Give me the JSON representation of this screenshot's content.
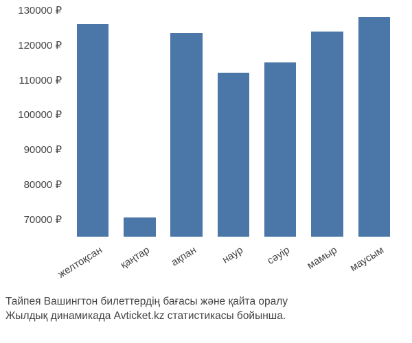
{
  "chart": {
    "type": "bar",
    "y_min": 65000,
    "y_max": 130000,
    "y_ticks": [
      70000,
      80000,
      90000,
      100000,
      110000,
      120000,
      130000
    ],
    "y_tick_suffix": " ₽",
    "categories": [
      "желтоқсан",
      "қаңтар",
      "ақпан",
      "наур",
      "сәуір",
      "мамыр",
      "маусым"
    ],
    "values": [
      126000,
      70500,
      123500,
      112000,
      115000,
      123800,
      128000
    ],
    "bar_color": "#4a76a8",
    "background_color": "#ffffff",
    "axis_label_color": "#444444",
    "axis_label_fontsize": 15,
    "x_label_rotation_deg": -32,
    "bar_width_ratio": 0.68
  },
  "caption": {
    "line1": "Тайпея Вашингтон билеттердің бағасы және қайта оралу",
    "line2": "Жылдық динамикада Avticket.kz статистикасы бойынша."
  }
}
